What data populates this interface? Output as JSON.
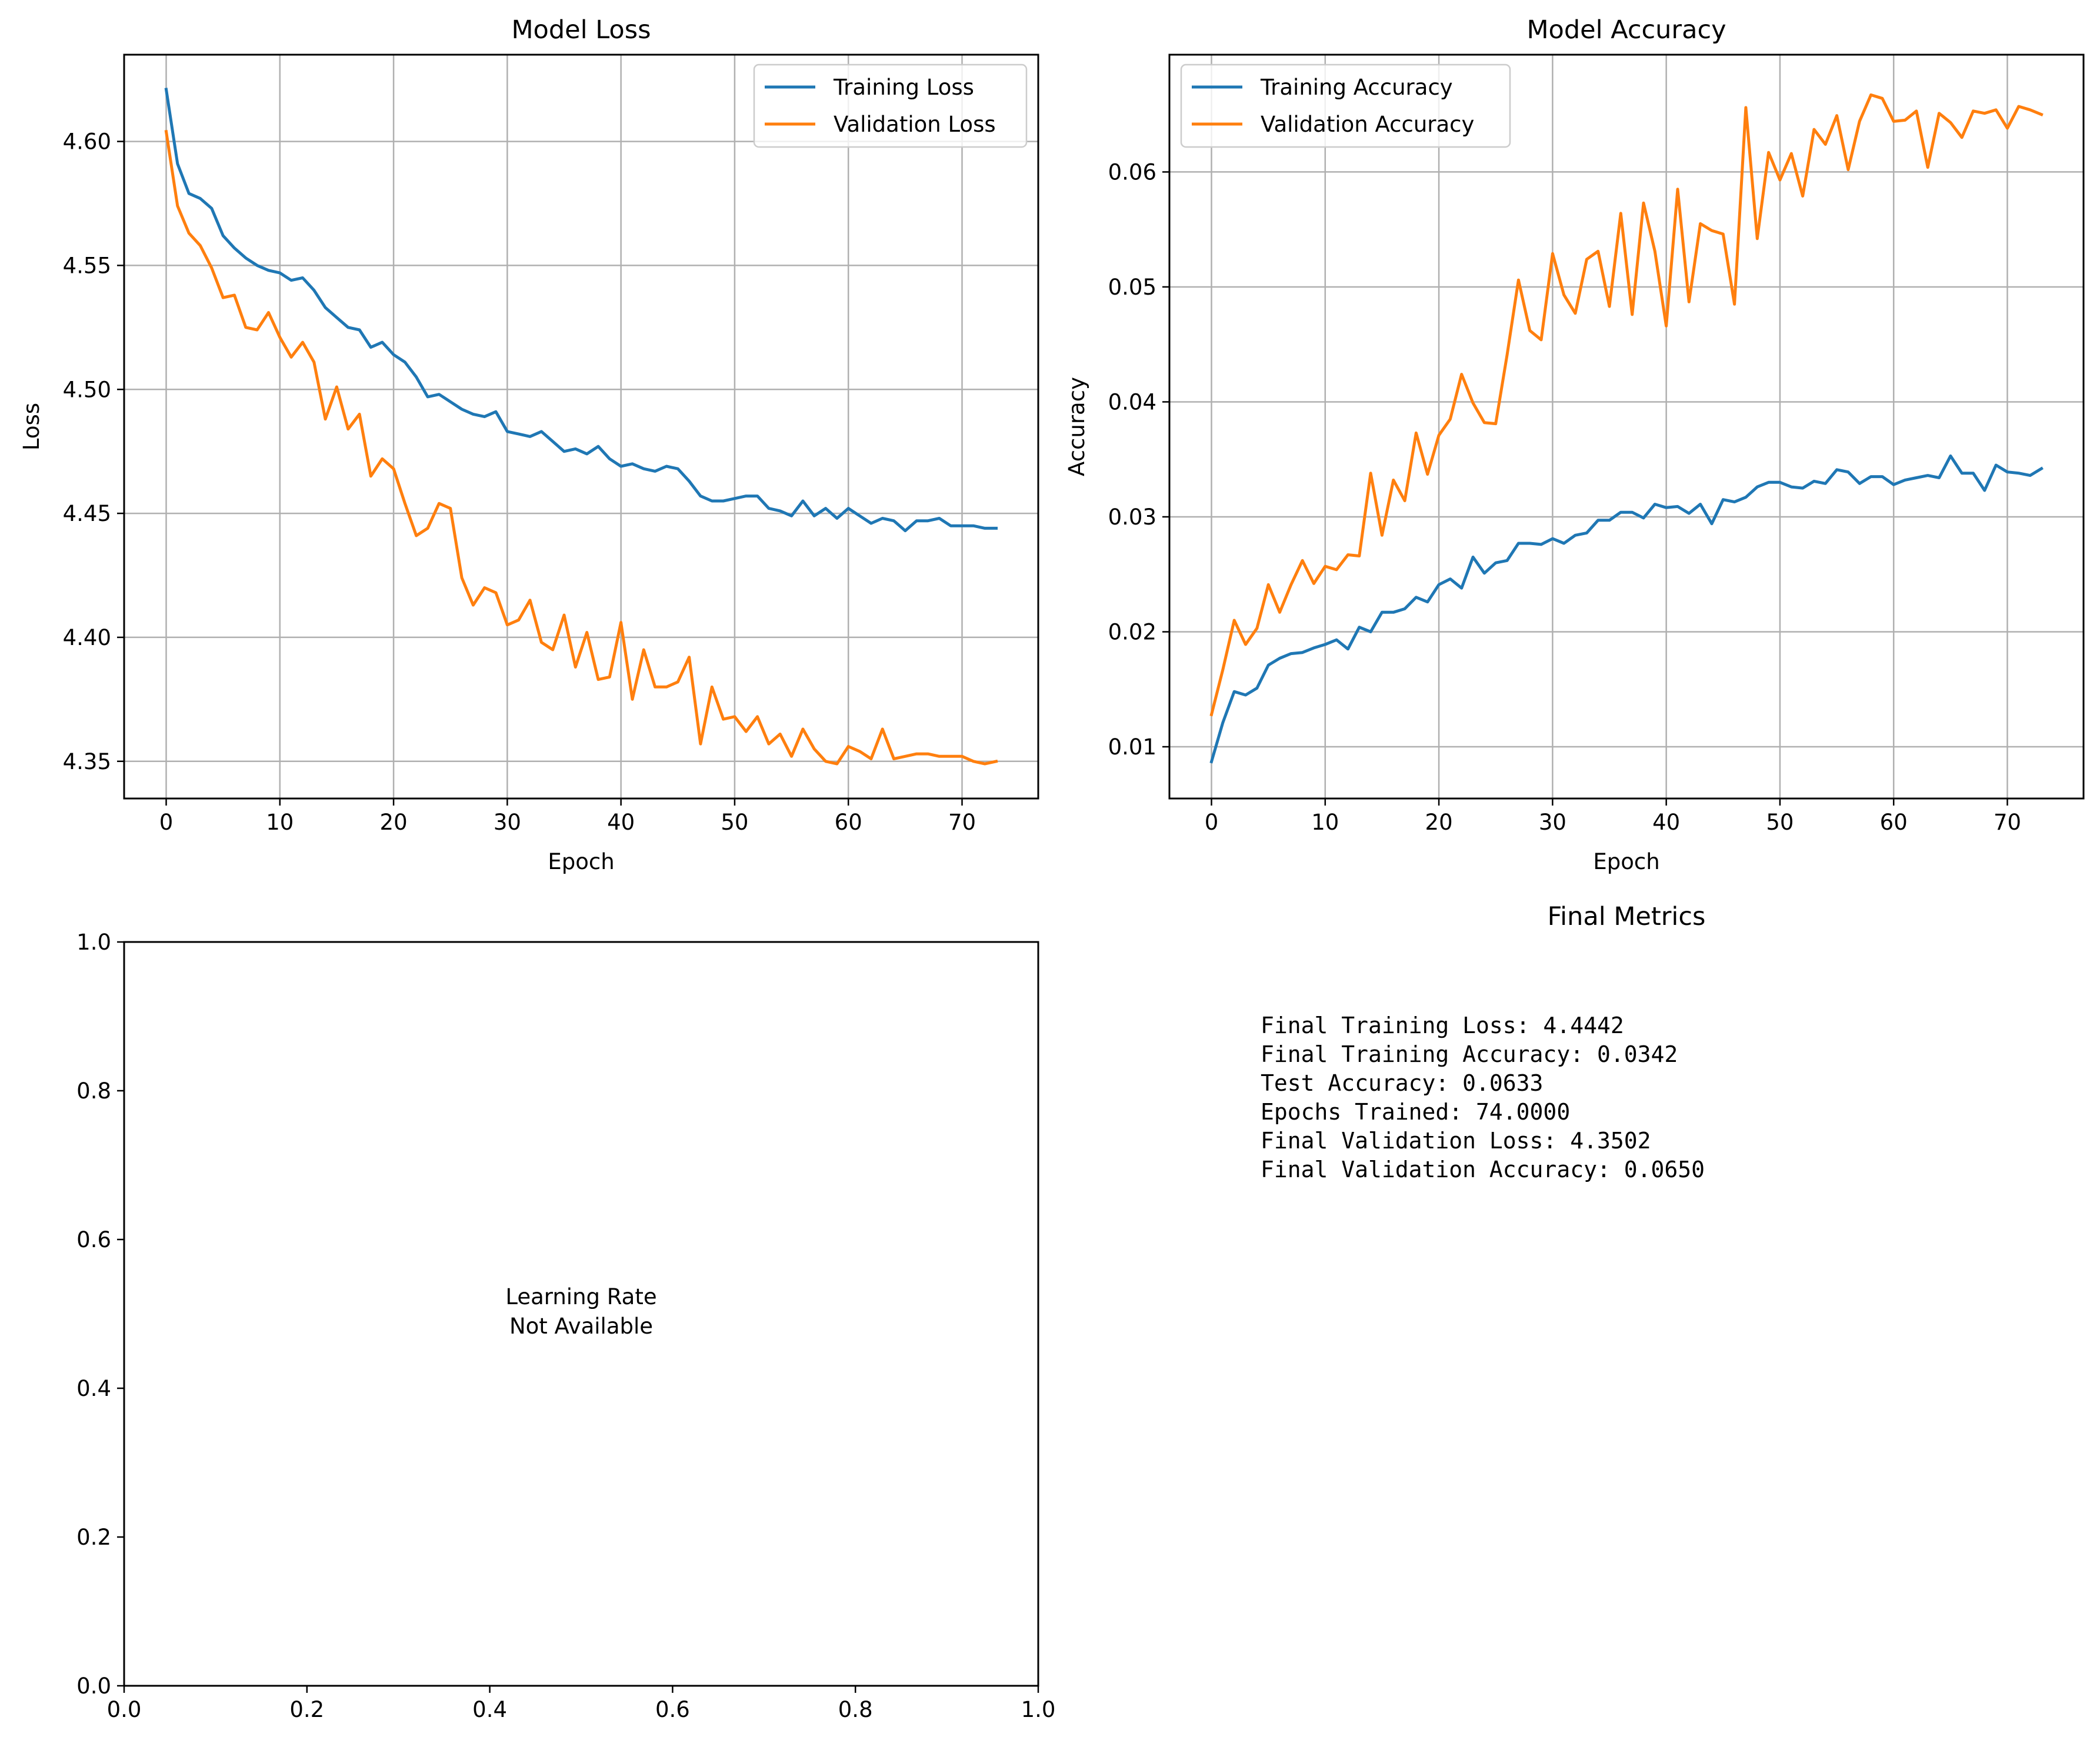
{
  "colors": {
    "training": "#1f77b4",
    "validation": "#ff7f0e",
    "grid": "#b0b0b0"
  },
  "chart_data": [
    {
      "type": "line",
      "title": "Model Loss",
      "xlabel": "Epoch",
      "ylabel": "Loss",
      "xlim": [
        -3.7,
        76.7
      ],
      "ylim": [
        4.335,
        4.635
      ],
      "xticks": [
        0,
        10,
        20,
        30,
        40,
        50,
        60,
        70
      ],
      "yticks": [
        4.35,
        4.4,
        4.45,
        4.5,
        4.55,
        4.6
      ],
      "ytick_labels": [
        "4.35",
        "4.40",
        "4.45",
        "4.50",
        "4.55",
        "4.60"
      ],
      "grid": true,
      "legend": "upper right",
      "series": [
        {
          "name": "Training Loss",
          "color": "#1f77b4",
          "values": [
            4.621,
            4.591,
            4.579,
            4.577,
            4.573,
            4.562,
            4.557,
            4.553,
            4.55,
            4.548,
            4.547,
            4.544,
            4.545,
            4.54,
            4.533,
            4.529,
            4.525,
            4.524,
            4.517,
            4.519,
            4.514,
            4.511,
            4.505,
            4.497,
            4.498,
            4.495,
            4.492,
            4.49,
            4.489,
            4.491,
            4.483,
            4.482,
            4.481,
            4.483,
            4.479,
            4.475,
            4.476,
            4.474,
            4.477,
            4.472,
            4.469,
            4.47,
            4.468,
            4.467,
            4.469,
            4.468,
            4.463,
            4.457,
            4.455,
            4.455,
            4.456,
            4.457,
            4.457,
            4.452,
            4.451,
            4.449,
            4.455,
            4.449,
            4.452,
            4.448,
            4.452,
            4.449,
            4.446,
            4.448,
            4.447,
            4.443,
            4.447,
            4.447,
            4.448,
            4.445,
            4.445,
            4.445,
            4.444,
            4.444
          ]
        },
        {
          "name": "Validation Loss",
          "color": "#ff7f0e",
          "values": [
            4.604,
            4.574,
            4.563,
            4.558,
            4.549,
            4.537,
            4.538,
            4.525,
            4.524,
            4.531,
            4.521,
            4.513,
            4.519,
            4.511,
            4.488,
            4.501,
            4.484,
            4.49,
            4.465,
            4.472,
            4.468,
            4.454,
            4.441,
            4.444,
            4.454,
            4.452,
            4.424,
            4.413,
            4.42,
            4.418,
            4.405,
            4.407,
            4.415,
            4.398,
            4.395,
            4.409,
            4.388,
            4.402,
            4.383,
            4.384,
            4.406,
            4.375,
            4.395,
            4.38,
            4.38,
            4.382,
            4.392,
            4.357,
            4.38,
            4.367,
            4.368,
            4.362,
            4.368,
            4.357,
            4.361,
            4.352,
            4.363,
            4.355,
            4.35,
            4.349,
            4.356,
            4.354,
            4.351,
            4.363,
            4.351,
            4.352,
            4.353,
            4.353,
            4.352,
            4.352,
            4.352,
            4.35,
            4.349,
            4.35
          ]
        }
      ]
    },
    {
      "type": "line",
      "title": "Model Accuracy",
      "xlabel": "Epoch",
      "ylabel": "Accuracy",
      "xlim": [
        -3.7,
        76.7
      ],
      "ylim": [
        0.0055,
        0.0702
      ],
      "xticks": [
        0,
        10,
        20,
        30,
        40,
        50,
        60,
        70
      ],
      "yticks": [
        0.01,
        0.02,
        0.03,
        0.04,
        0.05,
        0.06
      ],
      "ytick_labels": [
        "0.01",
        "0.02",
        "0.03",
        "0.04",
        "0.05",
        "0.06"
      ],
      "grid": true,
      "legend": "upper left",
      "series": [
        {
          "name": "Training Accuracy",
          "color": "#1f77b4",
          "values": [
            0.0087,
            0.0121,
            0.0148,
            0.0145,
            0.0151,
            0.0171,
            0.0177,
            0.0181,
            0.0182,
            0.0186,
            0.0189,
            0.0193,
            0.0185,
            0.0204,
            0.02,
            0.0217,
            0.0217,
            0.022,
            0.023,
            0.0226,
            0.0241,
            0.0246,
            0.0238,
            0.0265,
            0.0251,
            0.026,
            0.0262,
            0.0277,
            0.0277,
            0.0276,
            0.0281,
            0.0277,
            0.0284,
            0.0286,
            0.0297,
            0.0297,
            0.0304,
            0.0304,
            0.0299,
            0.0311,
            0.0308,
            0.0309,
            0.0303,
            0.0311,
            0.0294,
            0.0315,
            0.0313,
            0.0317,
            0.0326,
            0.033,
            0.033,
            0.0326,
            0.0325,
            0.0331,
            0.0329,
            0.0341,
            0.0339,
            0.0329,
            0.0335,
            0.0335,
            0.0328,
            0.0332,
            0.0334,
            0.0336,
            0.0334,
            0.0353,
            0.0338,
            0.0338,
            0.0323,
            0.0345,
            0.0339,
            0.0338,
            0.0336,
            0.0342
          ]
        },
        {
          "name": "Validation Accuracy",
          "color": "#ff7f0e",
          "values": [
            0.0128,
            0.0167,
            0.021,
            0.0189,
            0.0203,
            0.0241,
            0.0217,
            0.0241,
            0.0262,
            0.0242,
            0.0257,
            0.0254,
            0.0267,
            0.0266,
            0.0338,
            0.0284,
            0.0332,
            0.0314,
            0.0373,
            0.0337,
            0.0371,
            0.0385,
            0.0424,
            0.0399,
            0.0382,
            0.0381,
            0.0441,
            0.0506,
            0.0462,
            0.0454,
            0.0529,
            0.0493,
            0.0477,
            0.0524,
            0.0531,
            0.0483,
            0.0564,
            0.0476,
            0.0573,
            0.0531,
            0.0466,
            0.0585,
            0.0487,
            0.0555,
            0.0549,
            0.0546,
            0.0485,
            0.0656,
            0.0542,
            0.0617,
            0.0593,
            0.0616,
            0.0579,
            0.0637,
            0.0624,
            0.0649,
            0.0602,
            0.0644,
            0.0667,
            0.0664,
            0.0644,
            0.0645,
            0.0653,
            0.0604,
            0.0651,
            0.0643,
            0.063,
            0.0653,
            0.0651,
            0.0654,
            0.0638,
            0.0657,
            0.0654,
            0.065
          ]
        }
      ]
    },
    {
      "type": "line",
      "title": "",
      "xlim": [
        0,
        1
      ],
      "ylim": [
        0,
        1
      ],
      "xticks": [
        0.0,
        0.2,
        0.4,
        0.6,
        0.8,
        1.0
      ],
      "yticks": [
        0.0,
        0.2,
        0.4,
        0.6,
        0.8,
        1.0
      ],
      "xtick_labels": [
        "0.0",
        "0.2",
        "0.4",
        "0.6",
        "0.8",
        "1.0"
      ],
      "ytick_labels": [
        "0.0",
        "0.2",
        "0.4",
        "0.6",
        "0.8",
        "1.0"
      ],
      "grid": false,
      "annotation": [
        "Learning Rate",
        "Not Available"
      ],
      "series": []
    },
    {
      "type": "table",
      "title": "Final Metrics",
      "lines": [
        "Final Training Loss: 4.4442",
        "Final Training Accuracy: 0.0342",
        "Test Accuracy: 0.0633",
        "Epochs Trained: 74.0000",
        "Final Validation Loss: 4.3502",
        "Final Validation Accuracy: 0.0650"
      ]
    }
  ]
}
